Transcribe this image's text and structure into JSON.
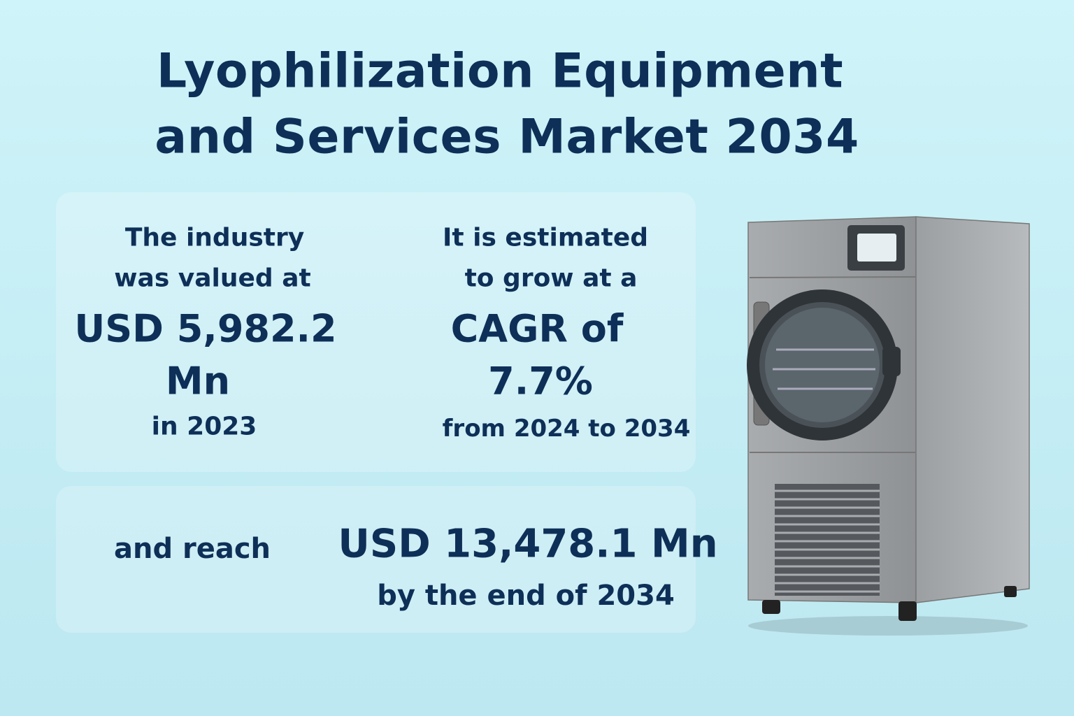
{
  "title": {
    "line1": "Lyophilization Equipment",
    "line2": "and Services Market 2034"
  },
  "valuation": {
    "intro1": "The industry",
    "intro2": "was valued at",
    "amount": "USD 5,982.2",
    "unit": "Mn",
    "year": "in 2023"
  },
  "growth": {
    "intro1": "It is estimated",
    "intro2": "to grow at a",
    "label": "CAGR of",
    "rate": "7.7%",
    "period": "from 2024 to 2034"
  },
  "forecast": {
    "intro": "and reach",
    "amount": "USD 13,478.1 Mn",
    "year": "by the end of 2034"
  }
}
